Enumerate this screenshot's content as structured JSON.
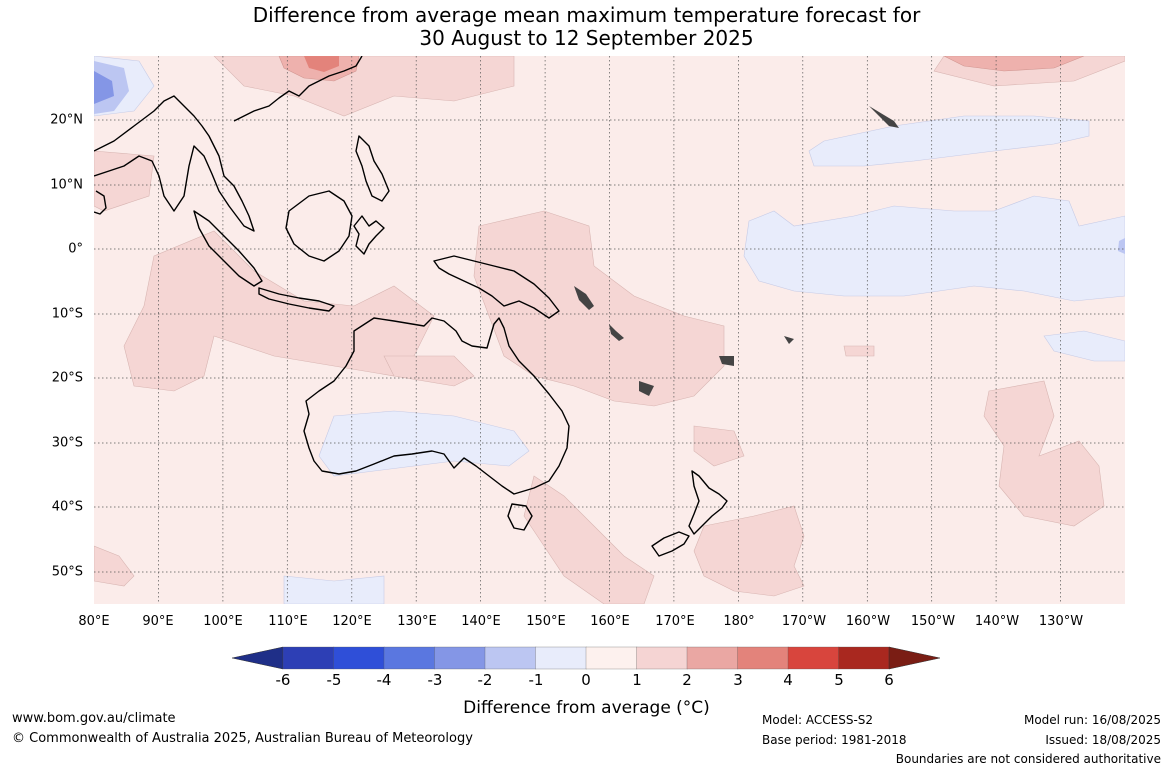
{
  "title_line1": "Difference from average mean maximum temperature forecast for",
  "title_line2": "30 August to 12 September 2025",
  "lon_labels": [
    "80°E",
    "90°E",
    "100°E",
    "110°E",
    "120°E",
    "130°E",
    "140°E",
    "150°E",
    "160°E",
    "170°E",
    "180°",
    "170°W",
    "160°W",
    "150°W",
    "140°W",
    "130°W"
  ],
  "lat_labels": [
    "20°N",
    "10°N",
    "0°",
    "10°S",
    "20°S",
    "30°S",
    "40°S",
    "50°S"
  ],
  "colorbar": {
    "ticks": [
      "-6",
      "-5",
      "-4",
      "-3",
      "-2",
      "-1",
      "0",
      "1",
      "2",
      "3",
      "4",
      "5",
      "6"
    ],
    "colors": [
      "#1f2f88",
      "#2d3fb5",
      "#2f4fd8",
      "#5a77e0",
      "#8496e6",
      "#bcc6f2",
      "#e8ecfb",
      "#fdf1ee",
      "#f5d4d3",
      "#eaa7a3",
      "#e3837b",
      "#d8453d",
      "#a9281f",
      "#7a1d14"
    ],
    "label": "Difference from average (°C)"
  },
  "footer": {
    "website": "www.bom.gov.au/climate",
    "copyright": "© Commonwealth of Australia 2025, Australian Bureau of Meteorology",
    "model": "Model: ACCESS-S2",
    "base_period": "Base period: 1981-2018",
    "model_run": "Model run: 16/08/2025",
    "issued": "Issued: 18/08/2025",
    "disclaimer": "Boundaries are not considered authoritative"
  }
}
